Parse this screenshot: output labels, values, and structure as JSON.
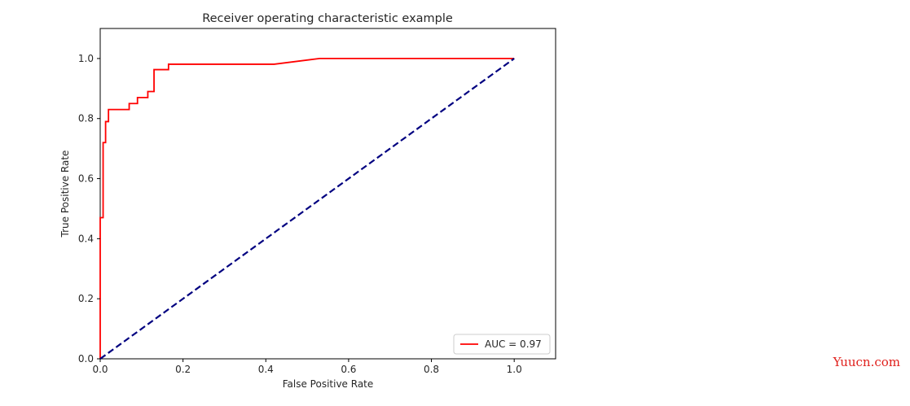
{
  "watermark": {
    "text": "Yuucn.com",
    "color": "#e0201c"
  },
  "chart_data": {
    "type": "line",
    "title": "Receiver operating characteristic example",
    "xlabel": "False Positive Rate",
    "ylabel": "True Positive Rate",
    "xlim": [
      0.0,
      1.1
    ],
    "ylim": [
      0.0,
      1.1
    ],
    "xticks": [
      {
        "value": 0.0,
        "label": "0.0"
      },
      {
        "value": 0.2,
        "label": "0.2"
      },
      {
        "value": 0.4,
        "label": "0.4"
      },
      {
        "value": 0.6,
        "label": "0.6"
      },
      {
        "value": 0.8,
        "label": "0.8"
      },
      {
        "value": 1.0,
        "label": "1.0"
      }
    ],
    "yticks": [
      {
        "value": 0.0,
        "label": "0.0"
      },
      {
        "value": 0.2,
        "label": "0.2"
      },
      {
        "value": 0.4,
        "label": "0.4"
      },
      {
        "value": 0.6,
        "label": "0.6"
      },
      {
        "value": 0.8,
        "label": "0.8"
      },
      {
        "value": 1.0,
        "label": "1.0"
      }
    ],
    "grid": false,
    "legend": {
      "position": "lower-right"
    },
    "series": [
      {
        "name": "AUC = 0.97",
        "color": "#ff0000",
        "style": "solid",
        "x": [
          0.0,
          0.0,
          0.007,
          0.007,
          0.013,
          0.013,
          0.02,
          0.02,
          0.07,
          0.07,
          0.09,
          0.09,
          0.115,
          0.115,
          0.13,
          0.13,
          0.165,
          0.165,
          0.42,
          0.53,
          1.0
        ],
        "y": [
          0.0,
          0.47,
          0.47,
          0.72,
          0.72,
          0.79,
          0.79,
          0.83,
          0.83,
          0.85,
          0.85,
          0.87,
          0.87,
          0.89,
          0.89,
          0.963,
          0.963,
          0.981,
          0.981,
          1.0,
          1.0
        ]
      },
      {
        "color": "#000080",
        "style": "dashed",
        "x": [
          0.0,
          1.0
        ],
        "y": [
          0.0,
          1.0
        ]
      }
    ]
  }
}
